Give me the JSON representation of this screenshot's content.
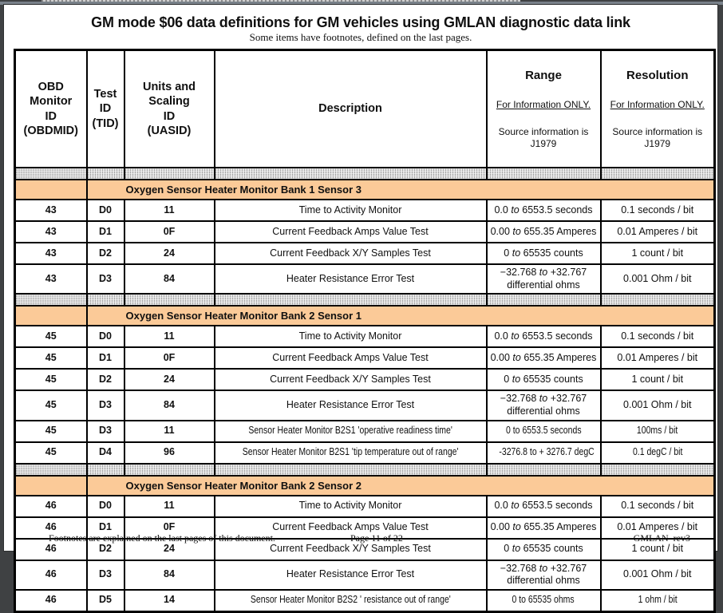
{
  "doc": {
    "title": "GM mode $06 data definitions for GM vehicles using GMLAN diagnostic data link",
    "subtitle": "Some items have footnotes, defined on the last pages."
  },
  "table": {
    "columns": [
      {
        "title": "OBD\nMonitor\nID\n(OBDMID)"
      },
      {
        "title": "Test\nID\n(TID)"
      },
      {
        "title": "Units and\nScaling\nID\n(UASID)"
      },
      {
        "title": "Description"
      },
      {
        "title": "Range",
        "note": "For Information ONLY.",
        "source": "Source information is J1979"
      },
      {
        "title": "Resolution",
        "note": "For Information ONLY.",
        "source": "Source information is J1979"
      }
    ],
    "sections": [
      {
        "title": "Oxygen Sensor Heater Monitor Bank 1 Sensor 3",
        "rows": [
          {
            "obdmid": "43",
            "tid": "D0",
            "uasid": "11",
            "description": "Time to Activity Monitor",
            "range": "0.0 to 6553.5 seconds",
            "resolution": "0.1 seconds / bit",
            "italic_to": true
          },
          {
            "obdmid": "43",
            "tid": "D1",
            "uasid": "0F",
            "description": "Current Feedback Amps Value Test",
            "range": "0.00 to 655.35 Amperes",
            "resolution": "0.01 Amperes / bit",
            "italic_to": true
          },
          {
            "obdmid": "43",
            "tid": "D2",
            "uasid": "24",
            "description": "Current Feedback X/Y Samples Test",
            "range": "0 to 65535 counts",
            "resolution": "1 count / bit",
            "italic_to": true
          },
          {
            "obdmid": "43",
            "tid": "D3",
            "uasid": "84",
            "description": "Heater Resistance Error Test",
            "range": "−32.768 to +32.767\ndifferential ohms",
            "resolution": "0.001 Ohm / bit",
            "italic_to": true
          }
        ]
      },
      {
        "title": "Oxygen Sensor Heater Monitor Bank 2 Sensor 1",
        "rows": [
          {
            "obdmid": "45",
            "tid": "D0",
            "uasid": "11",
            "description": "Time to Activity Monitor",
            "range": "0.0 to 6553.5 seconds",
            "resolution": "0.1 seconds / bit",
            "italic_to": true
          },
          {
            "obdmid": "45",
            "tid": "D1",
            "uasid": "0F",
            "description": "Current Feedback Amps Value Test",
            "range": "0.00 to 655.35 Amperes",
            "resolution": "0.01 Amperes / bit",
            "italic_to": true
          },
          {
            "obdmid": "45",
            "tid": "D2",
            "uasid": "24",
            "description": "Current Feedback X/Y Samples Test",
            "range": "0 to 65535 counts",
            "resolution": "1 count / bit",
            "italic_to": true
          },
          {
            "obdmid": "45",
            "tid": "D3",
            "uasid": "84",
            "description": "Heater Resistance Error Test",
            "range": "−32.768 to +32.767\ndifferential ohms",
            "resolution": "0.001 Ohm / bit",
            "italic_to": true
          },
          {
            "obdmid": "45",
            "tid": "D3",
            "uasid": "11",
            "description": "Sensor Heater Monitor B2S1 'operative readiness time'",
            "range": "0 to 6553.5 seconds",
            "resolution": "100ms / bit",
            "narrow": true
          },
          {
            "obdmid": "45",
            "tid": "D4",
            "uasid": "96",
            "description": "Sensor Heater Monitor B2S1 'tip temperature out of range'",
            "range": "-3276.8 to + 3276.7 degC",
            "resolution": "0.1 degC / bit",
            "narrow": true
          }
        ]
      },
      {
        "title": "Oxygen Sensor Heater Monitor Bank 2 Sensor 2",
        "rows": [
          {
            "obdmid": "46",
            "tid": "D0",
            "uasid": "11",
            "description": "Time to Activity Monitor",
            "range": "0.0 to 6553.5 seconds",
            "resolution": "0.1 seconds / bit",
            "italic_to": true
          },
          {
            "obdmid": "46",
            "tid": "D1",
            "uasid": "0F",
            "description": "Current Feedback Amps Value Test",
            "range": "0.00 to 655.35 Amperes",
            "resolution": "0.01 Amperes / bit",
            "italic_to": true
          },
          {
            "obdmid": "46",
            "tid": "D2",
            "uasid": "24",
            "description": "Current Feedback X/Y Samples Test",
            "range": "0 to 65535 counts",
            "resolution": "1 count / bit",
            "italic_to": true
          },
          {
            "obdmid": "46",
            "tid": "D3",
            "uasid": "84",
            "description": "Heater Resistance Error Test",
            "range": "−32.768 to +32.767\ndifferential ohms",
            "resolution": "0.001 Ohm / bit",
            "italic_to": true
          },
          {
            "obdmid": "46",
            "tid": "D5",
            "uasid": "14",
            "description": "Sensor Heater Monitor B2S2 ' resistance out of range'",
            "range": "0 to 65535 ohms",
            "resolution": "1 ohm / bit",
            "narrow": true
          }
        ]
      }
    ]
  },
  "footer": {
    "left": "Footnotes are explained on the last pages of this document.",
    "center": "Page 11 of 22",
    "right": "GMLAN  rev3"
  },
  "colors": {
    "section_bg": "#fbca98",
    "separator_gray": "#c9c9c9",
    "viewer_background": "#3f4143"
  }
}
